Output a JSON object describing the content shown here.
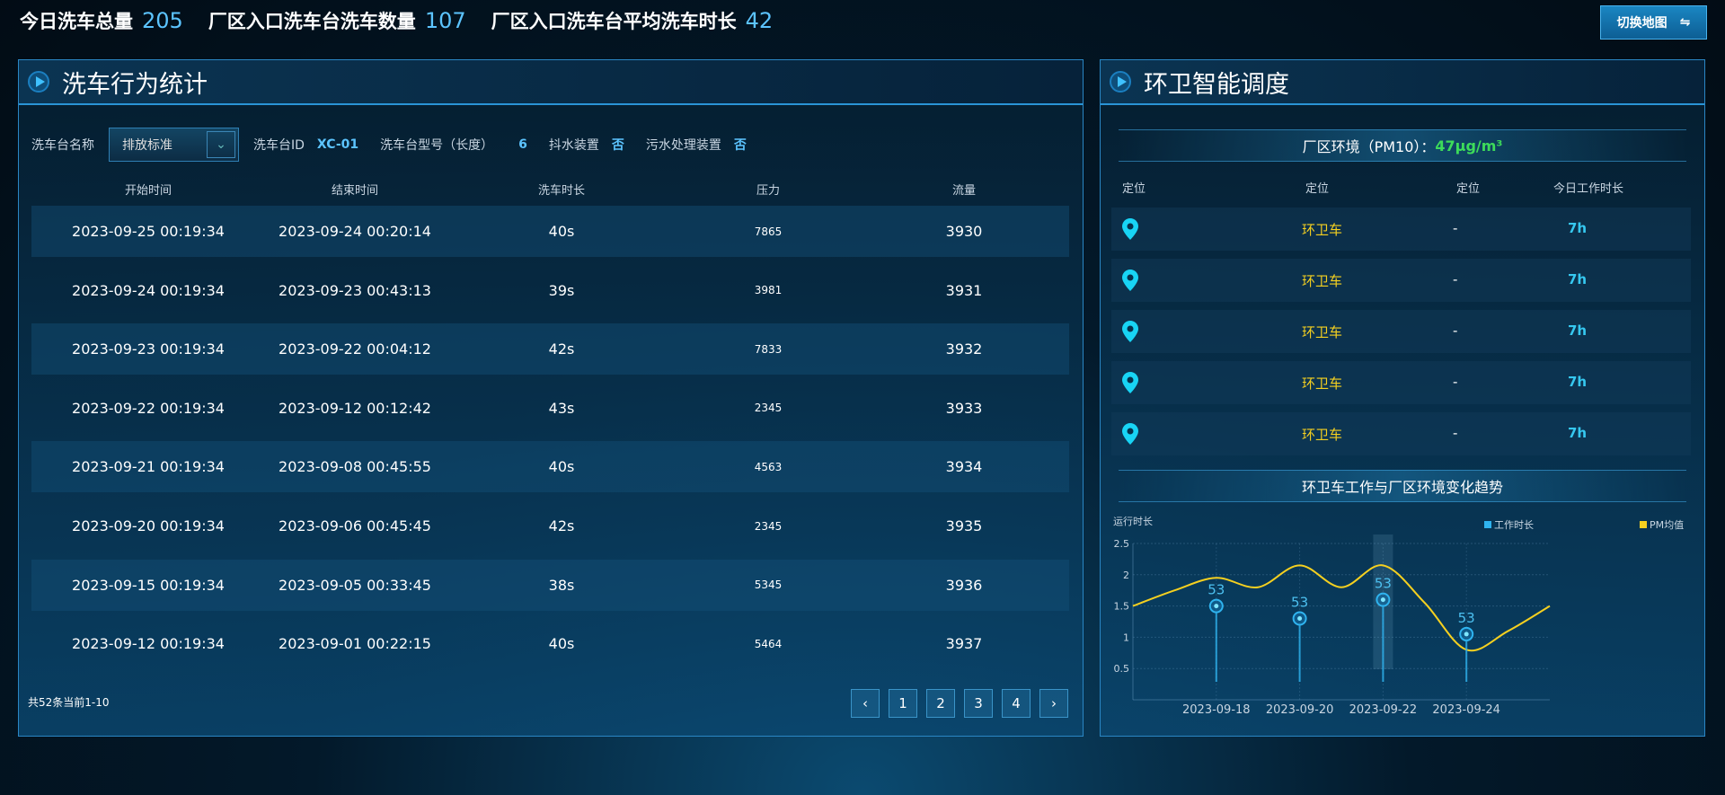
{
  "stats": [
    {
      "label": "今日洗车总量",
      "value": "205"
    },
    {
      "label": "厂区入口洗车台洗车数量",
      "value": "107"
    },
    {
      "label": "厂区入口洗车台平均洗车时长",
      "value": "42"
    }
  ],
  "switch_button": {
    "label": "切换地图",
    "icon": "swap-arrows-icon"
  },
  "left_panel": {
    "title": "洗车行为统计",
    "filter": {
      "name_label": "洗车台名称",
      "select_value": "排放标准",
      "id_label": "洗车台ID",
      "id_value": "XC-01",
      "model_label": "洗车台型号（长度）",
      "model_value": "6",
      "drain_label": "抖水装置",
      "drain_value": "否",
      "sewage_label": "污水处理装置",
      "sewage_value": "否"
    },
    "columns": [
      "开始时间",
      "结束时间",
      "洗车时长",
      "压力",
      "流量"
    ],
    "rows": [
      [
        "2023-09-25 00:19:34",
        "2023-09-24 00:20:14",
        "40s",
        "7865",
        "3930"
      ],
      [
        "2023-09-24 00:19:34",
        "2023-09-23 00:43:13",
        "39s",
        "3981",
        "3931"
      ],
      [
        "2023-09-23 00:19:34",
        "2023-09-22 00:04:12",
        "42s",
        "7833",
        "3932"
      ],
      [
        "2023-09-22 00:19:34",
        "2023-09-12 00:12:42",
        "43s",
        "2345",
        "3933"
      ],
      [
        "2023-09-21 00:19:34",
        "2023-09-08 00:45:55",
        "40s",
        "4563",
        "3934"
      ],
      [
        "2023-09-20 00:19:34",
        "2023-09-06 00:45:45",
        "42s",
        "2345",
        "3935"
      ],
      [
        "2023-09-15 00:19:34",
        "2023-09-05 00:33:45",
        "38s",
        "5345",
        "3936"
      ],
      [
        "2023-09-12 00:19:34",
        "2023-09-01 00:22:15",
        "40s",
        "5464",
        "3937"
      ]
    ],
    "pagination": {
      "info": "共52条当前1-10",
      "prev": "‹",
      "pages": [
        "1",
        "2",
        "3",
        "4"
      ],
      "next": "›"
    }
  },
  "right_panel": {
    "title": "环卫智能调度",
    "env_label": "厂区环境（PM10）：",
    "env_value": "47μg/m³",
    "env_color": "#3ddc5a",
    "columns": [
      "定位",
      "定位",
      "定位",
      "今日工作时长"
    ],
    "rows": [
      {
        "icon": "location-pin-icon",
        "name": "环卫车",
        "status": "-",
        "hours": "7h"
      },
      {
        "icon": "location-pin-icon",
        "name": "环卫车",
        "status": "-",
        "hours": "7h"
      },
      {
        "icon": "location-pin-icon",
        "name": "环卫车",
        "status": "-",
        "hours": "7h"
      },
      {
        "icon": "location-pin-icon",
        "name": "环卫车",
        "status": "-",
        "hours": "7h"
      },
      {
        "icon": "location-pin-icon",
        "name": "环卫车",
        "status": "-",
        "hours": "7h"
      }
    ],
    "chart_title": "环卫车工作与厂区环境变化趋势"
  },
  "chart_data": {
    "type": "line",
    "ylabel": "运行时长",
    "ylim": [
      0,
      2.5
    ],
    "yticks": [
      "0.5",
      "1",
      "1.5",
      "2",
      "2.5"
    ],
    "xticks": [
      "2023-09-18",
      "2023-09-20",
      "2023-09-22",
      "2023-09-24"
    ],
    "xrange": [
      "2023-09-16",
      "2023-09-26"
    ],
    "grid": true,
    "legend": "top-right",
    "series": [
      {
        "name": "工作时长",
        "type": "lollipop",
        "color": "#2fb4f0",
        "x": [
          "2023-09-18",
          "2023-09-20",
          "2023-09-22",
          "2023-09-24"
        ],
        "values": [
          1.5,
          1.3,
          1.6,
          1.05
        ],
        "labels": [
          "53",
          "53",
          "53",
          "53"
        ]
      },
      {
        "name": "PM均值",
        "type": "smooth-line",
        "color": "#f5d020",
        "x": [
          "2023-09-16",
          "2023-09-17",
          "2023-09-18",
          "2023-09-19",
          "2023-09-20",
          "2023-09-21",
          "2023-09-22",
          "2023-09-23",
          "2023-09-24",
          "2023-09-25",
          "2023-09-26"
        ],
        "values": [
          1.5,
          1.75,
          1.95,
          1.8,
          2.15,
          1.8,
          2.15,
          1.55,
          0.8,
          1.1,
          1.5
        ]
      }
    ],
    "highlighted": "2023-09-22"
  }
}
